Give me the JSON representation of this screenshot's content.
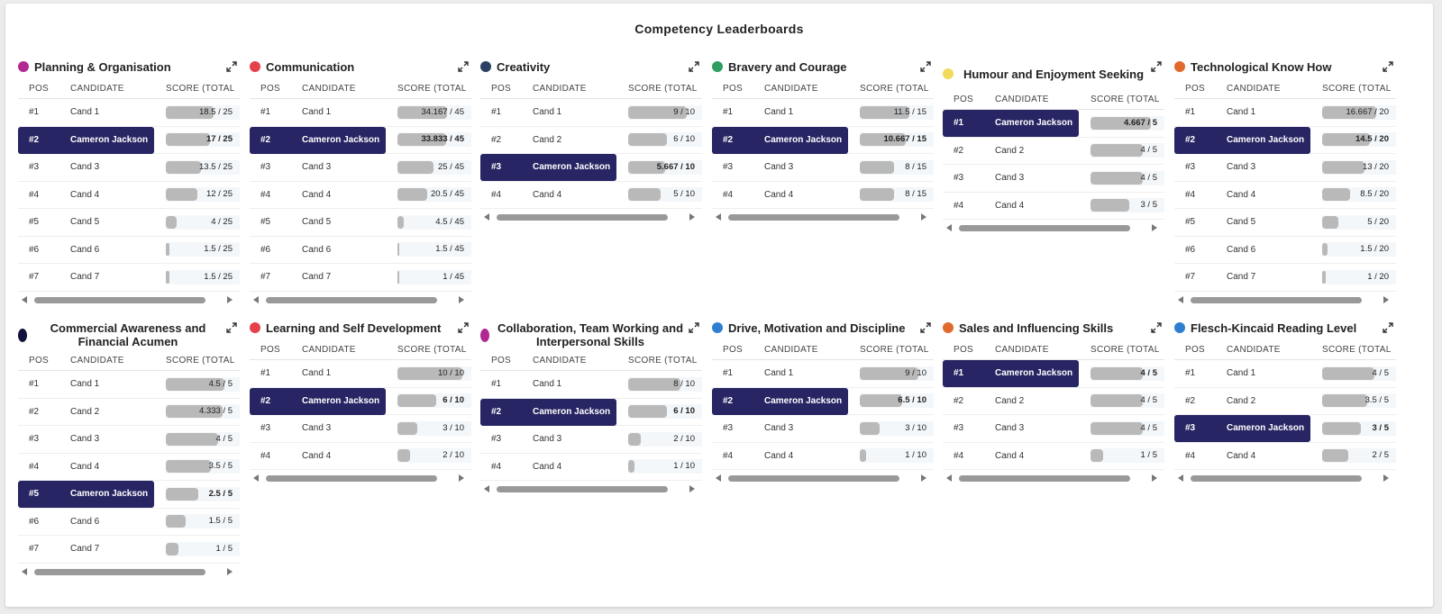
{
  "title": "Competency Leaderboards",
  "headers": {
    "pos": "POS",
    "candidate": "CANDIDATE",
    "score": "SCORE (TOTAL"
  },
  "panels": [
    {
      "title": "Planning & Organisation",
      "color": "#b02a91",
      "rows": [
        {
          "pos": "#1",
          "cand": "Cand 1",
          "score": "18.5 / 25",
          "frac": 0.74
        },
        {
          "pos": "#2",
          "cand": "Cameron Jackson",
          "score": "17 / 25",
          "frac": 0.68,
          "me": true
        },
        {
          "pos": "#3",
          "cand": "Cand 3",
          "score": "13.5 / 25",
          "frac": 0.54
        },
        {
          "pos": "#4",
          "cand": "Cand 4",
          "score": "12 / 25",
          "frac": 0.48
        },
        {
          "pos": "#5",
          "cand": "Cand 5",
          "score": "4 / 25",
          "frac": 0.16
        },
        {
          "pos": "#6",
          "cand": "Cand 6",
          "score": "1.5 / 25",
          "frac": 0.06
        },
        {
          "pos": "#7",
          "cand": "Cand 7",
          "score": "1.5 / 25",
          "frac": 0.06
        }
      ]
    },
    {
      "title": "Communication",
      "color": "#e5414a",
      "rows": [
        {
          "pos": "#1",
          "cand": "Cand 1",
          "score": "34.167 / 45",
          "frac": 0.76
        },
        {
          "pos": "#2",
          "cand": "Cameron Jackson",
          "score": "33.833 / 45",
          "frac": 0.75,
          "me": true
        },
        {
          "pos": "#3",
          "cand": "Cand 3",
          "score": "25 / 45",
          "frac": 0.56
        },
        {
          "pos": "#4",
          "cand": "Cand 4",
          "score": "20.5 / 45",
          "frac": 0.46
        },
        {
          "pos": "#5",
          "cand": "Cand 5",
          "score": "4.5 / 45",
          "frac": 0.1
        },
        {
          "pos": "#6",
          "cand": "Cand 6",
          "score": "1.5 / 45",
          "frac": 0.03
        },
        {
          "pos": "#7",
          "cand": "Cand 7",
          "score": "1 / 45",
          "frac": 0.02
        }
      ]
    },
    {
      "title": "Creativity",
      "color": "#2b3e64",
      "rows": [
        {
          "pos": "#1",
          "cand": "Cand 1",
          "score": "9 / 10",
          "frac": 0.9
        },
        {
          "pos": "#2",
          "cand": "Cand 2",
          "score": "6 / 10",
          "frac": 0.6
        },
        {
          "pos": "#3",
          "cand": "Cameron Jackson",
          "score": "5.667 / 10",
          "frac": 0.57,
          "me": true
        },
        {
          "pos": "#4",
          "cand": "Cand 4",
          "score": "5 / 10",
          "frac": 0.5
        }
      ]
    },
    {
      "title": "Bravery and Courage",
      "color": "#2e9d5e",
      "rows": [
        {
          "pos": "#1",
          "cand": "Cand 1",
          "score": "11.5 / 15",
          "frac": 0.77
        },
        {
          "pos": "#2",
          "cand": "Cameron Jackson",
          "score": "10.667 / 15",
          "frac": 0.71,
          "me": true
        },
        {
          "pos": "#3",
          "cand": "Cand 3",
          "score": "8 / 15",
          "frac": 0.53
        },
        {
          "pos": "#4",
          "cand": "Cand 4",
          "score": "8 / 15",
          "frac": 0.53
        }
      ]
    },
    {
      "title": "Humour and Enjoyment Seeking",
      "color": "#f2db5c",
      "twoLine": true,
      "rows": [
        {
          "pos": "#1",
          "cand": "Cameron Jackson",
          "score": "4.667 / 5",
          "frac": 0.93,
          "me": true
        },
        {
          "pos": "#2",
          "cand": "Cand 2",
          "score": "4 / 5",
          "frac": 0.8
        },
        {
          "pos": "#3",
          "cand": "Cand 3",
          "score": "4 / 5",
          "frac": 0.8
        },
        {
          "pos": "#4",
          "cand": "Cand 4",
          "score": "3 / 5",
          "frac": 0.6
        }
      ]
    },
    {
      "title": "Technological Know How",
      "color": "#e06a2c",
      "rows": [
        {
          "pos": "#1",
          "cand": "Cand 1",
          "score": "16.667 / 20",
          "frac": 0.83
        },
        {
          "pos": "#2",
          "cand": "Cameron Jackson",
          "score": "14.5 / 20",
          "frac": 0.73,
          "me": true
        },
        {
          "pos": "#3",
          "cand": "Cand 3",
          "score": "13 / 20",
          "frac": 0.65
        },
        {
          "pos": "#4",
          "cand": "Cand 4",
          "score": "8.5 / 20",
          "frac": 0.43
        },
        {
          "pos": "#5",
          "cand": "Cand 5",
          "score": "5 / 20",
          "frac": 0.25
        },
        {
          "pos": "#6",
          "cand": "Cand 6",
          "score": "1.5 / 20",
          "frac": 0.08
        },
        {
          "pos": "#7",
          "cand": "Cand 7",
          "score": "1 / 20",
          "frac": 0.05
        }
      ]
    },
    {
      "title": "Commercial Awareness and Financial Acumen",
      "color": "#12123f",
      "twoLine": true,
      "oval": true,
      "rows": [
        {
          "pos": "#1",
          "cand": "Cand 1",
          "score": "4.5 / 5",
          "frac": 0.9
        },
        {
          "pos": "#2",
          "cand": "Cand 2",
          "score": "4.333 / 5",
          "frac": 0.87
        },
        {
          "pos": "#3",
          "cand": "Cand 3",
          "score": "4 / 5",
          "frac": 0.8
        },
        {
          "pos": "#4",
          "cand": "Cand 4",
          "score": "3.5 / 5",
          "frac": 0.7
        },
        {
          "pos": "#5",
          "cand": "Cameron Jackson",
          "score": "2.5 / 5",
          "frac": 0.5,
          "me": true
        },
        {
          "pos": "#6",
          "cand": "Cand 6",
          "score": "1.5 / 5",
          "frac": 0.3
        },
        {
          "pos": "#7",
          "cand": "Cand 7",
          "score": "1 / 5",
          "frac": 0.2
        }
      ]
    },
    {
      "title": "Learning and Self Development",
      "color": "#e5414a",
      "rows": [
        {
          "pos": "#1",
          "cand": "Cand 1",
          "score": "10 / 10",
          "frac": 1.0
        },
        {
          "pos": "#2",
          "cand": "Cameron Jackson",
          "score": "6 / 10",
          "frac": 0.6,
          "me": true
        },
        {
          "pos": "#3",
          "cand": "Cand 3",
          "score": "3 / 10",
          "frac": 0.3
        },
        {
          "pos": "#4",
          "cand": "Cand 4",
          "score": "2 / 10",
          "frac": 0.2
        }
      ]
    },
    {
      "title": "Collaboration, Team Working and Interpersonal Skills",
      "color": "#b02a91",
      "twoLine": true,
      "oval": true,
      "rows": [
        {
          "pos": "#1",
          "cand": "Cand 1",
          "score": "8 / 10",
          "frac": 0.8
        },
        {
          "pos": "#2",
          "cand": "Cameron Jackson",
          "score": "6 / 10",
          "frac": 0.6,
          "me": true
        },
        {
          "pos": "#3",
          "cand": "Cand 3",
          "score": "2 / 10",
          "frac": 0.2
        },
        {
          "pos": "#4",
          "cand": "Cand 4",
          "score": "1 / 10",
          "frac": 0.1
        }
      ]
    },
    {
      "title": "Drive, Motivation and Discipline",
      "color": "#2f7fd1",
      "rows": [
        {
          "pos": "#1",
          "cand": "Cand 1",
          "score": "9 / 10",
          "frac": 0.9
        },
        {
          "pos": "#2",
          "cand": "Cameron Jackson",
          "score": "6.5 / 10",
          "frac": 0.65,
          "me": true
        },
        {
          "pos": "#3",
          "cand": "Cand 3",
          "score": "3 / 10",
          "frac": 0.3
        },
        {
          "pos": "#4",
          "cand": "Cand 4",
          "score": "1 / 10",
          "frac": 0.1
        }
      ]
    },
    {
      "title": "Sales and Influencing Skills",
      "color": "#e06a2c",
      "rows": [
        {
          "pos": "#1",
          "cand": "Cameron Jackson",
          "score": "4 / 5",
          "frac": 0.8,
          "me": true
        },
        {
          "pos": "#2",
          "cand": "Cand 2",
          "score": "4 / 5",
          "frac": 0.8
        },
        {
          "pos": "#3",
          "cand": "Cand 3",
          "score": "4 / 5",
          "frac": 0.8
        },
        {
          "pos": "#4",
          "cand": "Cand 4",
          "score": "1 / 5",
          "frac": 0.2
        }
      ]
    },
    {
      "title": "Flesch-Kincaid Reading Level",
      "color": "#2f7fd1",
      "rows": [
        {
          "pos": "#1",
          "cand": "Cand 1",
          "score": "4 / 5",
          "frac": 0.8
        },
        {
          "pos": "#2",
          "cand": "Cand 2",
          "score": "3.5 / 5",
          "frac": 0.7
        },
        {
          "pos": "#3",
          "cand": "Cameron Jackson",
          "score": "3 / 5",
          "frac": 0.6,
          "me": true
        },
        {
          "pos": "#4",
          "cand": "Cand 4",
          "score": "2 / 5",
          "frac": 0.4
        }
      ]
    }
  ]
}
